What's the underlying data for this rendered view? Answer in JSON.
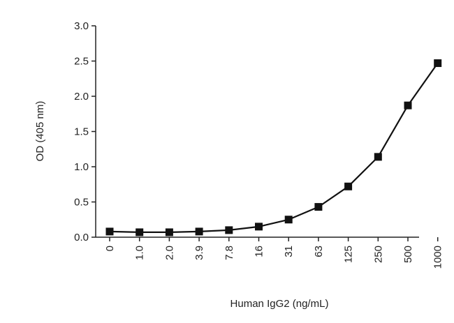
{
  "chart_data": {
    "type": "line",
    "xlabel": "Human IgG2 (ng/mL)",
    "ylabel": "OD (405 nm)",
    "ylim": [
      0,
      3.0
    ],
    "yticks": [
      "0.0",
      "0.5",
      "1.0",
      "1.5",
      "2.0",
      "2.5",
      "3.0"
    ],
    "categories": [
      "0",
      "1.0",
      "2.0",
      "3.9",
      "7.8",
      "16",
      "31",
      "63",
      "125",
      "250",
      "500",
      "1000"
    ],
    "values": [
      0.08,
      0.07,
      0.07,
      0.08,
      0.1,
      0.15,
      0.25,
      0.43,
      0.72,
      1.14,
      1.87,
      2.47
    ],
    "marker": "square",
    "color": "#111111",
    "grid": false,
    "legend": "none"
  }
}
